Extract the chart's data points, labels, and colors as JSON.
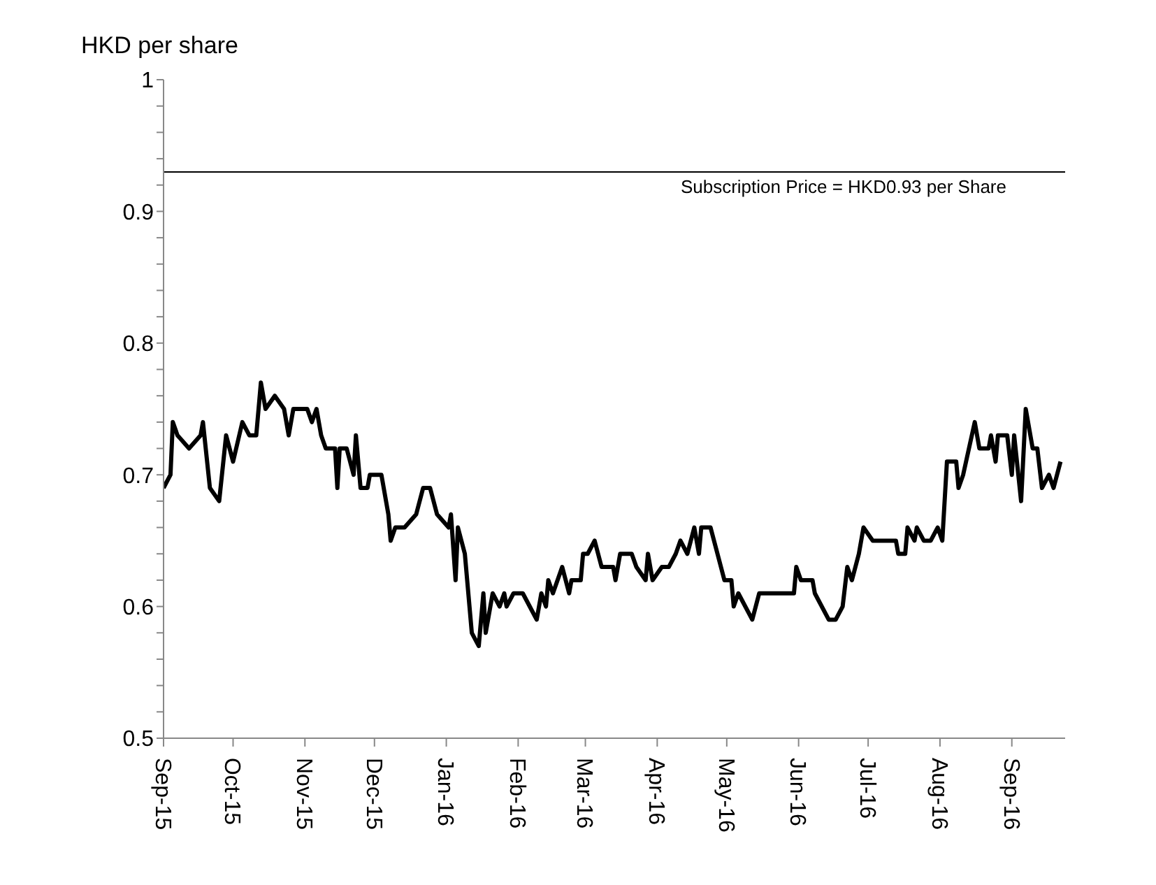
{
  "chart_data": {
    "type": "line",
    "ylabel": "HKD per share",
    "x": [
      "2015-09-01",
      "2015-09-04",
      "2015-09-05",
      "2015-09-07",
      "2015-09-12",
      "2015-09-17",
      "2015-09-18",
      "2015-09-21",
      "2015-09-25",
      "2015-09-28",
      "2015-10-01",
      "2015-10-05",
      "2015-10-08",
      "2015-10-11",
      "2015-10-13",
      "2015-10-15",
      "2015-10-19",
      "2015-10-23",
      "2015-10-25",
      "2015-10-27",
      "2015-11-02",
      "2015-11-04",
      "2015-11-06",
      "2015-11-08",
      "2015-11-10",
      "2015-11-14",
      "2015-11-15",
      "2015-11-16",
      "2015-11-19",
      "2015-11-22",
      "2015-11-23",
      "2015-11-25",
      "2015-11-28",
      "2015-11-29",
      "2015-12-04",
      "2015-12-07",
      "2015-12-08",
      "2015-12-10",
      "2015-12-14",
      "2015-12-19",
      "2015-12-22",
      "2015-12-25",
      "2015-12-28",
      "2016-01-02",
      "2016-01-03",
      "2016-01-05",
      "2016-01-06",
      "2016-01-09",
      "2016-01-12",
      "2016-01-15",
      "2016-01-17",
      "2016-01-18",
      "2016-01-21",
      "2016-01-24",
      "2016-01-26",
      "2016-01-27",
      "2016-01-30",
      "2016-02-03",
      "2016-02-09",
      "2016-02-11",
      "2016-02-13",
      "2016-02-14",
      "2016-02-16",
      "2016-02-20",
      "2016-02-23",
      "2016-02-24",
      "2016-02-28",
      "2016-02-29",
      "2016-03-02",
      "2016-03-05",
      "2016-03-08",
      "2016-03-13",
      "2016-03-14",
      "2016-03-16",
      "2016-03-21",
      "2016-03-23",
      "2016-03-27",
      "2016-03-28",
      "2016-03-30",
      "2016-04-03",
      "2016-04-06",
      "2016-04-09",
      "2016-04-11",
      "2016-04-14",
      "2016-04-17",
      "2016-04-19",
      "2016-04-20",
      "2016-04-24",
      "2016-04-27",
      "2016-04-30",
      "2016-05-03",
      "2016-05-04",
      "2016-05-06",
      "2016-05-12",
      "2016-05-15",
      "2016-05-30",
      "2016-05-31",
      "2016-06-02",
      "2016-06-07",
      "2016-06-08",
      "2016-06-14",
      "2016-06-17",
      "2016-06-20",
      "2016-06-22",
      "2016-06-24",
      "2016-06-27",
      "2016-06-29",
      "2016-07-03",
      "2016-07-13",
      "2016-07-14",
      "2016-07-17",
      "2016-07-18",
      "2016-07-21",
      "2016-07-22",
      "2016-07-25",
      "2016-07-28",
      "2016-07-31",
      "2016-08-02",
      "2016-08-04",
      "2016-08-08",
      "2016-08-09",
      "2016-08-11",
      "2016-08-16",
      "2016-08-18",
      "2016-08-22",
      "2016-08-23",
      "2016-08-25",
      "2016-08-26",
      "2016-08-30",
      "2016-09-01",
      "2016-09-02",
      "2016-09-05",
      "2016-09-07",
      "2016-09-10",
      "2016-09-12",
      "2016-09-14",
      "2016-09-17",
      "2016-09-19",
      "2016-09-22"
    ],
    "series": [
      {
        "color": "#000000",
        "values": [
          0.69,
          0.7,
          0.74,
          0.73,
          0.72,
          0.73,
          0.74,
          0.69,
          0.68,
          0.73,
          0.71,
          0.74,
          0.73,
          0.73,
          0.77,
          0.75,
          0.76,
          0.75,
          0.73,
          0.75,
          0.75,
          0.74,
          0.75,
          0.73,
          0.72,
          0.72,
          0.69,
          0.72,
          0.72,
          0.7,
          0.73,
          0.69,
          0.69,
          0.7,
          0.7,
          0.67,
          0.65,
          0.66,
          0.66,
          0.67,
          0.69,
          0.69,
          0.67,
          0.66,
          0.67,
          0.62,
          0.66,
          0.64,
          0.58,
          0.57,
          0.61,
          0.58,
          0.61,
          0.6,
          0.61,
          0.6,
          0.61,
          0.61,
          0.59,
          0.61,
          0.6,
          0.62,
          0.61,
          0.63,
          0.61,
          0.62,
          0.62,
          0.64,
          0.64,
          0.65,
          0.63,
          0.63,
          0.62,
          0.64,
          0.64,
          0.63,
          0.62,
          0.64,
          0.62,
          0.63,
          0.63,
          0.64,
          0.65,
          0.64,
          0.66,
          0.64,
          0.66,
          0.66,
          0.64,
          0.62,
          0.62,
          0.6,
          0.61,
          0.59,
          0.61,
          0.61,
          0.63,
          0.62,
          0.62,
          0.61,
          0.59,
          0.59,
          0.6,
          0.63,
          0.62,
          0.64,
          0.66,
          0.65,
          0.65,
          0.64,
          0.64,
          0.66,
          0.65,
          0.66,
          0.65,
          0.65,
          0.66,
          0.65,
          0.71,
          0.71,
          0.69,
          0.7,
          0.74,
          0.72,
          0.72,
          0.73,
          0.71,
          0.73,
          0.73,
          0.7,
          0.73,
          0.68,
          0.75,
          0.72,
          0.72,
          0.69,
          0.7,
          0.69,
          0.71
        ]
      }
    ],
    "xlim": [
      "2015-09-01",
      "2016-09-24"
    ],
    "xticks": [
      {
        "value": "2015-09-01",
        "label": "Sep-15"
      },
      {
        "value": "2015-10-01",
        "label": "Oct-15"
      },
      {
        "value": "2015-11-01",
        "label": "Nov-15"
      },
      {
        "value": "2015-12-01",
        "label": "Dec-15"
      },
      {
        "value": "2016-01-01",
        "label": "Jan-16"
      },
      {
        "value": "2016-02-01",
        "label": "Feb-16"
      },
      {
        "value": "2016-03-01",
        "label": "Mar-16"
      },
      {
        "value": "2016-04-01",
        "label": "Apr-16"
      },
      {
        "value": "2016-05-01",
        "label": "May-16"
      },
      {
        "value": "2016-06-01",
        "label": "Jun-16"
      },
      {
        "value": "2016-07-01",
        "label": "Jul-16"
      },
      {
        "value": "2016-08-01",
        "label": "Aug-16"
      },
      {
        "value": "2016-09-01",
        "label": "Sep-16"
      }
    ],
    "ylim": [
      0.5,
      1
    ],
    "yticks": [
      0.5,
      {
        "value": 0.52,
        "label": null
      },
      {
        "value": 0.54,
        "label": null
      },
      {
        "value": 0.56,
        "label": null
      },
      {
        "value": 0.58,
        "label": null
      },
      0.6,
      {
        "value": 0.62,
        "label": null
      },
      {
        "value": 0.64,
        "label": null
      },
      {
        "value": 0.66,
        "label": null
      },
      {
        "value": 0.68,
        "label": null
      },
      0.7,
      {
        "value": 0.72,
        "label": null
      },
      {
        "value": 0.74,
        "label": null
      },
      {
        "value": 0.76,
        "label": null
      },
      {
        "value": 0.78,
        "label": null
      },
      0.8,
      {
        "value": 0.82,
        "label": null
      },
      {
        "value": 0.84,
        "label": null
      },
      {
        "value": 0.86,
        "label": null
      },
      {
        "value": 0.88,
        "label": null
      },
      0.9,
      {
        "value": 0.92,
        "label": null
      },
      {
        "value": 0.94,
        "label": null
      },
      {
        "value": 0.96,
        "label": null
      },
      {
        "value": 0.98,
        "label": null
      },
      1
    ],
    "ref_lines": [
      {
        "axis": "y",
        "value": 0.93,
        "label": "Subscription Price = HKD0.93 per Share",
        "color": "#000000"
      }
    ],
    "grid": false,
    "legend": false,
    "marker": "none",
    "line_style": "solid"
  }
}
